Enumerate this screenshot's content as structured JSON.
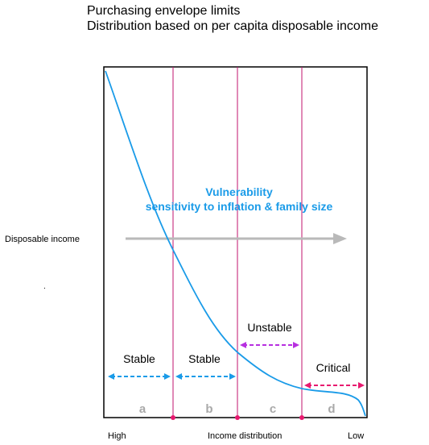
{
  "title": "Purchasing envelope limits",
  "subtitle": "Distribution based on per capita disposable income",
  "y_axis_label": "Disposable income",
  "stray_mark": ".",
  "x_axis": {
    "left": "High",
    "center": "Income distribution",
    "right": "Low"
  },
  "vulnerability": {
    "line1": "Vulnerability",
    "line2": "sensitivity to inflation & family size"
  },
  "zones": [
    {
      "letter": "a",
      "label": "Stable"
    },
    {
      "letter": "b",
      "label": "Stable"
    },
    {
      "letter": "c",
      "label": "Unstable"
    },
    {
      "letter": "d",
      "label": "Critical"
    }
  ],
  "colors": {
    "curve": "#1a9be8",
    "divider": "#c0136e",
    "blue_arrow": "#1a9be8",
    "purple_arrow": "#b72fe0",
    "pink_arrow": "#e8196f",
    "grey_arrow": "#b9b9b9",
    "zone_letters": "#a9a9a9",
    "vulnerability_text": "#1a9be8"
  }
}
